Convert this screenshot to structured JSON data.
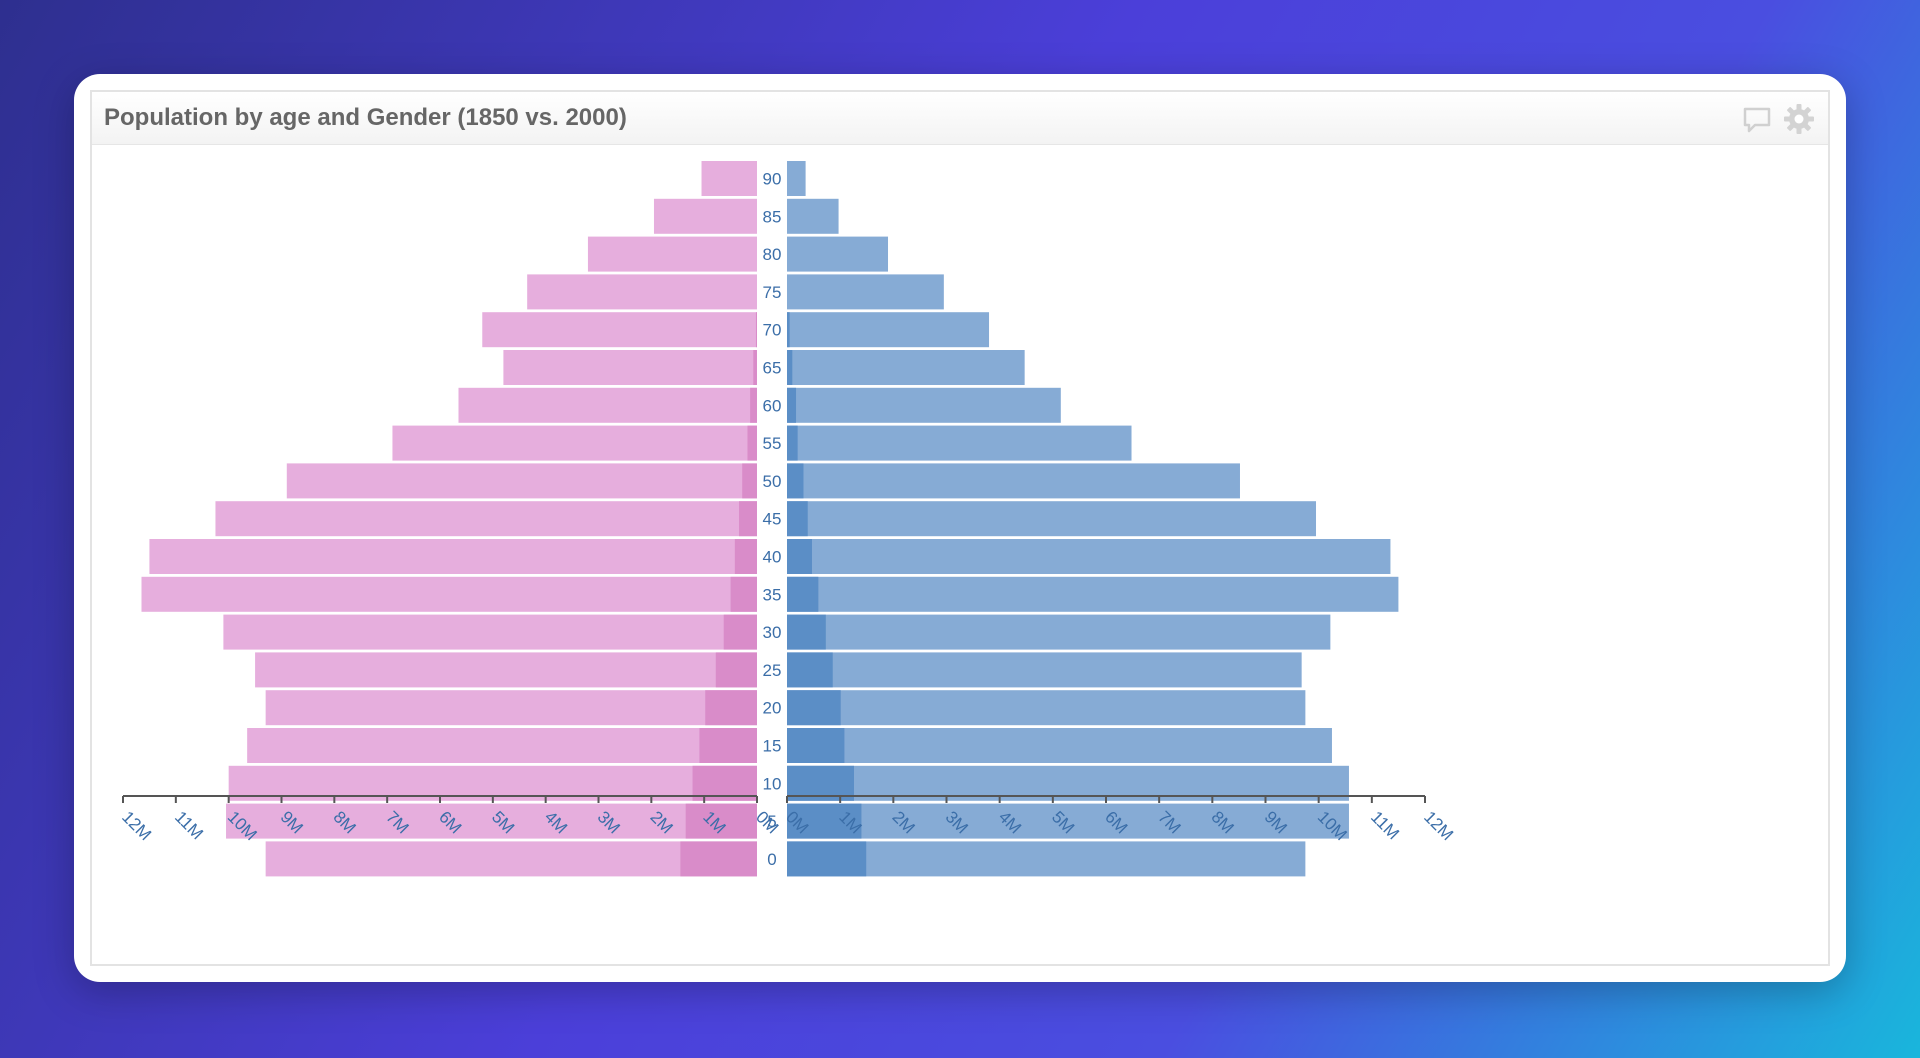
{
  "panel": {
    "title": "Population by age and Gender (1850 vs. 2000)"
  },
  "icons": [
    "comment-icon",
    "gear-icon"
  ],
  "colors": {
    "female_2000": "#e6aedd",
    "female_1850": "#d98cc9",
    "male_2000": "#86abd5",
    "male_1850": "#5b8ec6",
    "axis": "#555555",
    "label": "#3b6ea8"
  },
  "chart_data": {
    "type": "bar",
    "orientation": "horizontal population pyramid",
    "title": "Population by age and Gender (1850 vs. 2000)",
    "categories": [
      "90",
      "85",
      "80",
      "75",
      "70",
      "65",
      "60",
      "55",
      "50",
      "45",
      "40",
      "35",
      "30",
      "25",
      "20",
      "15",
      "10",
      "5",
      "0"
    ],
    "x_ticks_left": [
      "12M",
      "11M",
      "10M",
      "9M",
      "8M",
      "7M",
      "6M",
      "5M",
      "4M",
      "3M",
      "2M",
      "1M",
      "0M"
    ],
    "x_ticks_right": [
      "0M",
      "1M",
      "2M",
      "3M",
      "4M",
      "5M",
      "6M",
      "7M",
      "8M",
      "9M",
      "10M",
      "11M",
      "12M"
    ],
    "xlim": [
      0,
      12000000
    ],
    "series": [
      {
        "side": "left",
        "values": [
          1050000,
          1950000,
          3200000,
          4350000,
          5200000,
          4800000,
          5650000,
          6900000,
          8900000,
          10250000,
          11500000,
          11650000,
          10100000,
          9500000,
          9300000,
          9650000,
          10000000,
          10050000,
          9300000
        ]
      },
      {
        "side": "left",
        "values": [
          0,
          0,
          0,
          0,
          20000,
          70000,
          130000,
          180000,
          280000,
          340000,
          420000,
          500000,
          630000,
          780000,
          980000,
          1090000,
          1220000,
          1350000,
          1450000
        ]
      },
      {
        "side": "right",
        "values": [
          350000,
          970000,
          1900000,
          2950000,
          3800000,
          4470000,
          5150000,
          6480000,
          8520000,
          9950000,
          11350000,
          11500000,
          10220000,
          9680000,
          9750000,
          10250000,
          10570000,
          10570000,
          9750000
        ]
      },
      {
        "side": "right",
        "values": [
          0,
          0,
          0,
          0,
          50000,
          100000,
          170000,
          200000,
          310000,
          390000,
          470000,
          590000,
          730000,
          860000,
          1010000,
          1080000,
          1260000,
          1400000,
          1490000
        ]
      }
    ],
    "grid": false
  }
}
